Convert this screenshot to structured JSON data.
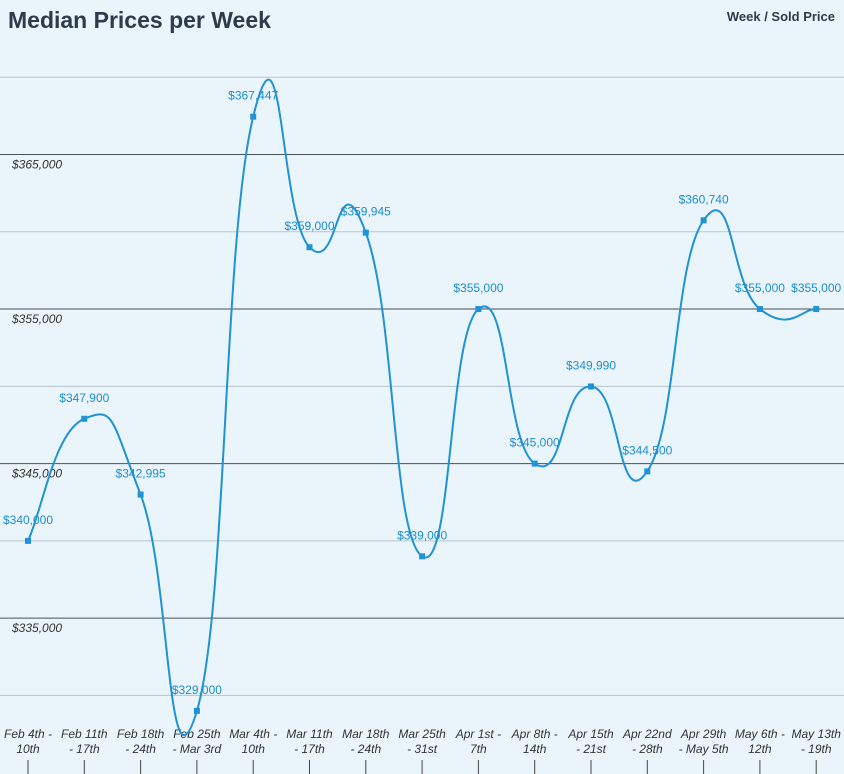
{
  "title": "Median Prices per Week",
  "legend_text": "Week / Sold Price",
  "colors": {
    "background": "#eaf4fb",
    "line": "#1f93d6",
    "label": "#1f8fcf",
    "major_grid": "#4a4f55",
    "minor_grid": "#b9c4cc"
  },
  "chart_data": {
    "type": "line",
    "title": "Median Prices per Week",
    "xlabel": "",
    "ylabel": "",
    "ylim": [
      325000,
      370000
    ],
    "yticks": [
      335000,
      345000,
      355000,
      365000
    ],
    "ytick_labels": [
      "$335,000",
      "$345,000",
      "$355,000",
      "$365,000"
    ],
    "grid": true,
    "legend": "top-right",
    "categories": [
      [
        "Feb 4th -",
        "10th"
      ],
      [
        "Feb 11th",
        "- 17th"
      ],
      [
        "Feb 18th",
        "- 24th"
      ],
      [
        "Feb 25th",
        "- Mar 3rd"
      ],
      [
        "Mar 4th -",
        "10th"
      ],
      [
        "Mar 11th",
        "- 17th"
      ],
      [
        "Mar 18th",
        "- 24th"
      ],
      [
        "Mar 25th",
        "- 31st"
      ],
      [
        "Apr 1st -",
        "7th"
      ],
      [
        "Apr 8th -",
        "14th"
      ],
      [
        "Apr 15th",
        "- 21st"
      ],
      [
        "Apr 22nd",
        "- 28th"
      ],
      [
        "Apr 29th",
        "- May 5th"
      ],
      [
        "May 6th -",
        "12th"
      ],
      [
        "May 13th",
        "- 19th"
      ]
    ],
    "series": [
      {
        "values": [
          340000,
          347900,
          342995,
          329000,
          367447,
          359000,
          359945,
          339000,
          355000,
          345000,
          349990,
          344500,
          360740,
          355000,
          355000
        ],
        "labels": [
          "$340,000",
          "$347,900",
          "$342,995",
          "$329,000",
          "$367,447",
          "$359,000",
          "$359,945",
          "$339,000",
          "$355,000",
          "$345,000",
          "$349,990",
          "$344,500",
          "$360,740",
          "$355,000",
          "$355,000"
        ]
      }
    ]
  }
}
